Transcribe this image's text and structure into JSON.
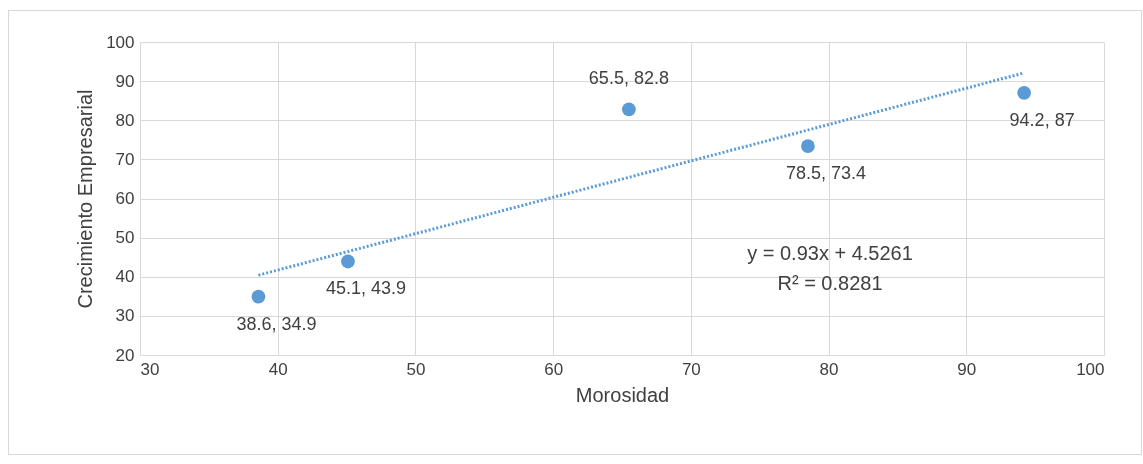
{
  "chart_data": {
    "type": "scatter",
    "xlabel": "Morosidad",
    "ylabel": "Crecimiento Empresarial",
    "x": [
      38.6,
      45.1,
      65.5,
      78.5,
      94.2
    ],
    "series": [
      {
        "color": "#5b9bd5",
        "marker": "circle",
        "values": [
          34.9,
          43.9,
          82.8,
          73.4,
          87
        ],
        "value_labels": [
          "38.6, 34.9",
          "45.1, 43.9",
          "65.5, 82.8",
          "78.5, 73.4",
          "94.2, 87"
        ]
      },
      {
        "type": "line",
        "color": "#5b9bd5",
        "x": [
          38.6,
          94.2
        ],
        "values": [
          40.4,
          92.1
        ],
        "line_style": "dotted",
        "marker": "none"
      }
    ],
    "annotations": [
      "y = 0.93x + 4.5261",
      "R² = 0.8281"
    ],
    "xlim": [
      30,
      100
    ],
    "xticks": [
      30,
      40,
      50,
      60,
      70,
      80,
      90,
      100
    ],
    "ylim": [
      20,
      100
    ],
    "yticks": [
      20,
      30,
      40,
      50,
      60,
      70,
      80,
      90,
      100
    ],
    "grid": true
  }
}
